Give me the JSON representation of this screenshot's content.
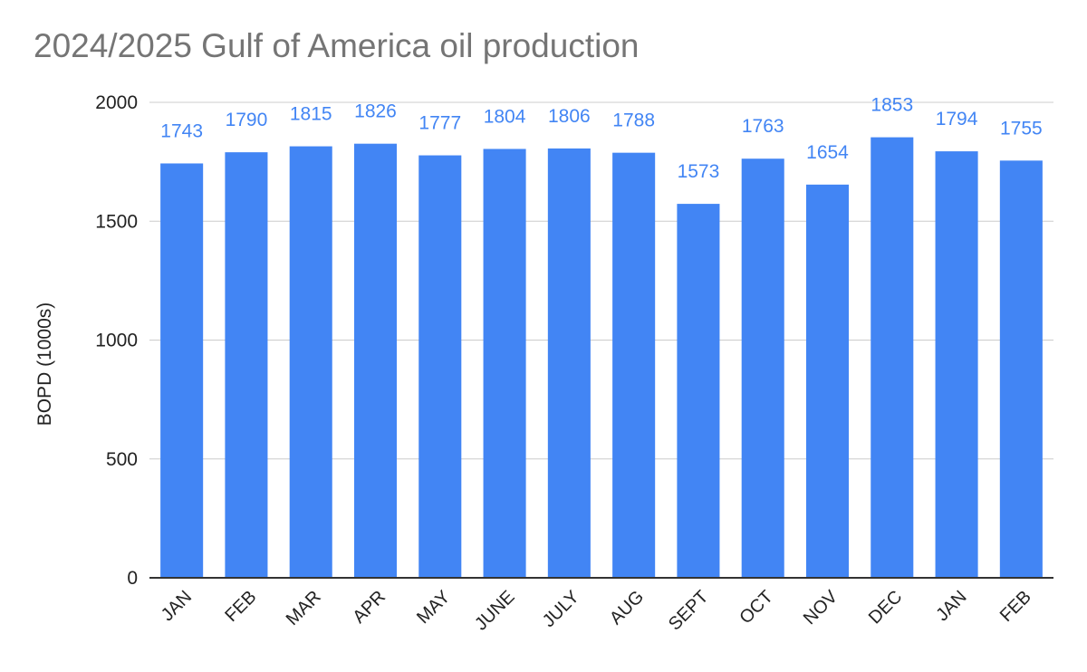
{
  "chart_data": {
    "type": "bar",
    "title": "2024/2025 Gulf of America oil production",
    "xlabel": "",
    "ylabel": "BOPD (1000s)",
    "ylim": [
      0,
      2000
    ],
    "yticks": [
      0,
      500,
      1000,
      1500,
      2000
    ],
    "categories": [
      "JAN",
      "FEB",
      "MAR",
      "APR",
      "MAY",
      "JUNE",
      "JULY",
      "AUG",
      "SEPT",
      "OCT",
      "NOV",
      "DEC",
      "JAN",
      "FEB"
    ],
    "values": [
      1743,
      1790,
      1815,
      1826,
      1777,
      1804,
      1806,
      1788,
      1573,
      1763,
      1654,
      1853,
      1794,
      1755
    ],
    "grid": true,
    "legend": "none",
    "colors": {
      "bar": "#4285f4",
      "data_label": "#4285f4",
      "grid": "#cccccc",
      "axis": "#333333"
    }
  }
}
